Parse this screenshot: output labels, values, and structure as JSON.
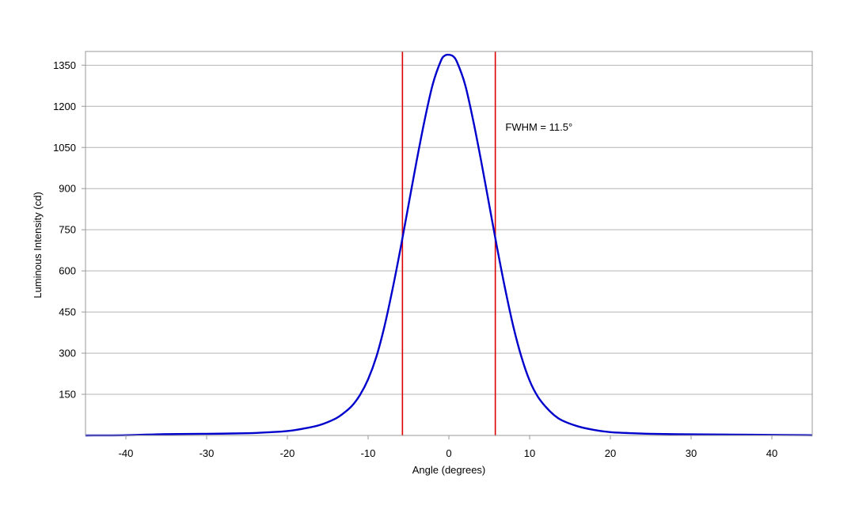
{
  "chart_data": {
    "type": "line",
    "title": "",
    "xlabel": "Angle (degrees)",
    "ylabel": "Luminous Intensity (cd)",
    "xlim": [
      -45,
      45
    ],
    "ylim": [
      0,
      1400
    ],
    "xticks": [
      -40,
      -30,
      -20,
      -10,
      0,
      10,
      20,
      30,
      40
    ],
    "xtick_labels": [
      "-40",
      "-30",
      "-20",
      "-10",
      "0",
      "10",
      "20",
      "30",
      "40"
    ],
    "yticks": [
      150,
      300,
      450,
      600,
      750,
      900,
      1050,
      1200,
      1350
    ],
    "ytick_labels": [
      "150",
      "300",
      "450",
      "600",
      "750",
      "900",
      "1050",
      "1200",
      "1350"
    ],
    "grid": "horizontal",
    "series": [
      {
        "color": "#0000cc",
        "x": [
          -45,
          -40,
          -35,
          -30,
          -25,
          -22,
          -20,
          -18,
          -16,
          -14,
          -13,
          -12,
          -11,
          -10,
          -9,
          -8,
          -7,
          -6,
          -5,
          -4,
          -3,
          -2,
          -1,
          -0.5,
          0,
          0.5,
          1,
          2,
          3,
          4,
          5,
          6,
          7,
          8,
          9,
          10,
          11,
          12,
          13,
          14,
          16,
          18,
          20,
          22,
          25,
          30,
          35,
          40,
          45
        ],
        "y": [
          0,
          1,
          5,
          6,
          8,
          12,
          16,
          25,
          38,
          62,
          82,
          108,
          148,
          205,
          285,
          395,
          530,
          680,
          840,
          1000,
          1150,
          1280,
          1365,
          1385,
          1388,
          1383,
          1362,
          1280,
          1150,
          1000,
          840,
          680,
          530,
          395,
          285,
          200,
          142,
          104,
          75,
          55,
          33,
          20,
          12,
          9,
          6,
          4,
          3,
          2,
          1
        ]
      }
    ],
    "vlines": [
      {
        "x": -5.75,
        "color": "#dd0000"
      },
      {
        "x": 5.75,
        "color": "#dd0000"
      }
    ],
    "annotations": [
      {
        "text": "FWHM = 11.5°",
        "x": 7,
        "y": 1125
      }
    ],
    "colors": {
      "grid": "#b4b4b4",
      "frame": "#999999"
    }
  }
}
